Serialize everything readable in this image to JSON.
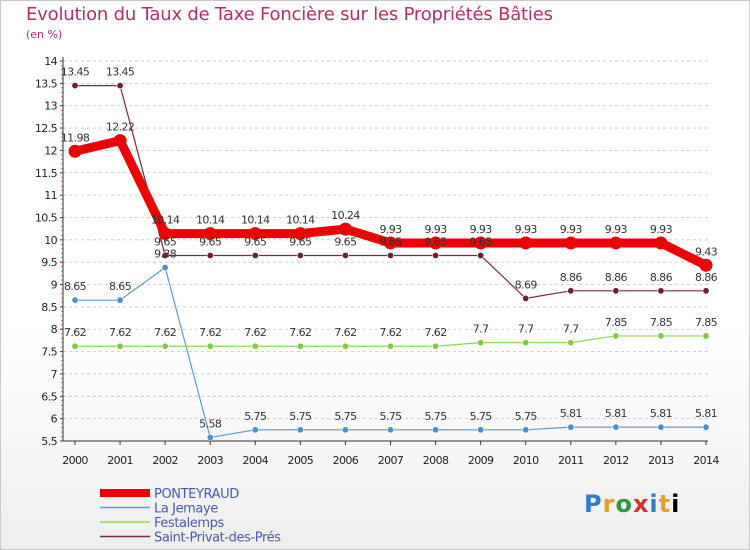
{
  "title": "Evolution du Taux de Taxe Foncière sur les Propriétés Bâties",
  "unit_label": "(en %)",
  "logo_text": "Proxiti",
  "colors": {
    "title": "#b0306a",
    "axis": "#333333",
    "grid": "#bbbbbb",
    "legend_text": "#4a5aa8"
  },
  "chart_data": {
    "type": "line",
    "title": "Evolution du Taux de Taxe Foncière sur les Propriétés Bâties",
    "ylabel": "(en %)",
    "xlabel": "",
    "x": [
      "2000",
      "2001",
      "2002",
      "2003",
      "2004",
      "2005",
      "2006",
      "2007",
      "2008",
      "2009",
      "2010",
      "2011",
      "2012",
      "2013",
      "2014"
    ],
    "ylim": [
      5.5,
      14
    ],
    "yticks": [
      "5.5",
      "6",
      "6.5",
      "7",
      "7.5",
      "8",
      "8.5",
      "9",
      "9.5",
      "10",
      "10.5",
      "11",
      "11.5",
      "12",
      "12.5",
      "13",
      "13.5",
      "14"
    ],
    "grid": "horizontal dashed",
    "legend": "bottom-left",
    "series": [
      {
        "name": "PONTEYRAUD",
        "color": "#ee0000",
        "width": 9,
        "marker": false,
        "values": [
          11.98,
          12.22,
          10.14,
          10.14,
          10.14,
          10.14,
          10.24,
          9.93,
          9.93,
          9.93,
          9.93,
          9.93,
          9.93,
          9.93,
          9.43
        ],
        "labels": [
          "11.98",
          "12.22",
          "10.14",
          "10.14",
          "10.14",
          "10.14",
          "10.24",
          "9.93",
          "9.93",
          "9.93",
          "9.93",
          "9.93",
          "9.93",
          "9.93",
          "9.43"
        ]
      },
      {
        "name": "La Jemaye",
        "color": "#5b9bd5",
        "fill": "#4a8fd0",
        "width": 1.2,
        "marker": true,
        "values": [
          8.65,
          8.65,
          9.38,
          5.58,
          5.75,
          5.75,
          5.75,
          5.75,
          5.75,
          5.75,
          5.75,
          5.81,
          5.81,
          5.81,
          5.81
        ],
        "labels": [
          "8.65",
          "8.65",
          "9.38",
          "5.58",
          "5.75",
          "5.75",
          "5.75",
          "5.75",
          "5.75",
          "5.75",
          "5.75",
          "5.81",
          "5.81",
          "5.81",
          "5.81"
        ]
      },
      {
        "name": "Festalemps",
        "color": "#8fd850",
        "fill": "#7fcc44",
        "width": 1.2,
        "marker": true,
        "values": [
          7.62,
          7.62,
          7.62,
          7.62,
          7.62,
          7.62,
          7.62,
          7.62,
          7.62,
          7.7,
          7.7,
          7.7,
          7.85,
          7.85,
          7.85
        ],
        "labels": [
          "7.62",
          "7.62",
          "7.62",
          "7.62",
          "7.62",
          "7.62",
          "7.62",
          "7.62",
          "7.62",
          "7.7",
          "7.7",
          "7.7",
          "7.85",
          "7.85",
          "7.85"
        ]
      },
      {
        "name": "Saint-Privat-des-Prés",
        "color": "#7a2a3a",
        "fill": "#6e2030",
        "width": 1.2,
        "marker": true,
        "values": [
          13.45,
          13.45,
          9.65,
          9.65,
          9.65,
          9.65,
          9.65,
          9.65,
          9.65,
          9.65,
          8.69,
          8.86,
          8.86,
          8.86,
          8.86
        ],
        "labels": [
          "13.45",
          "13.45",
          "9.65",
          "9.65",
          "9.65",
          "9.65",
          "9.65",
          "9.65",
          "9.65",
          "9.65",
          "8.69",
          "8.86",
          "8.86",
          "8.86",
          "8.86"
        ]
      }
    ]
  }
}
